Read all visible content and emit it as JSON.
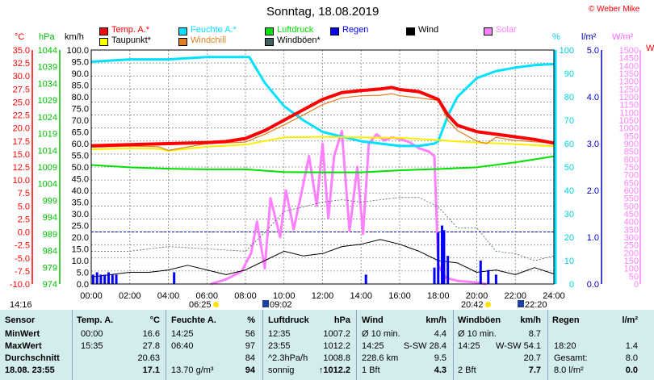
{
  "title": "Sonntag, 18.08.2019",
  "copyright": "© Weber Mike",
  "legend": [
    {
      "key": "temp",
      "label": "Temp. A.*",
      "color": "#ff0000"
    },
    {
      "key": "hum",
      "label": "Feuchte A.*",
      "color": "#00e0ff"
    },
    {
      "key": "press",
      "label": "Luftdruck",
      "color": "#00e000"
    },
    {
      "key": "rain",
      "label": "Regen",
      "color": "#0000ff"
    },
    {
      "key": "wind",
      "label": "Wind",
      "color": "#000000"
    },
    {
      "key": "solar",
      "label": "Solar",
      "color": "#ff80ff"
    },
    {
      "key": "dew",
      "label": "Taupunkt*",
      "color": "#ffff00"
    },
    {
      "key": "chill",
      "label": "Windchill",
      "color": "#e08020"
    },
    {
      "key": "gust",
      "label": "Windböen*",
      "color": "#406060"
    }
  ],
  "axis_units": {
    "temp": "°C",
    "press": "hPa",
    "wind": "km/h",
    "hum": "%",
    "rain": "l/m²",
    "solar": "W/m²",
    "cut": "W"
  },
  "sun": {
    "rise": "06:25",
    "set": "20:42"
  },
  "moon": {
    "rise": "09:02",
    "set": "22:20"
  },
  "start_time": "14:16",
  "chart_data": {
    "type": "line",
    "x_unit": "hour of day",
    "xlim": [
      0,
      24
    ],
    "x_ticks": [
      "00:00",
      "02:00",
      "04:00",
      "06:00",
      "08:00",
      "10:00",
      "12:00",
      "14:00",
      "16:00",
      "18:00",
      "20:00",
      "22:00",
      "24:00"
    ],
    "axes": {
      "temp_c": {
        "ticks": [
          "35.0",
          "32.5",
          "30.0",
          "27.5",
          "25.0",
          "22.5",
          "20.0",
          "17.5",
          "15.0",
          "12.5",
          "10.0",
          "7.5",
          "5.0",
          "2.5",
          "0.0",
          "-2.5",
          "-5.0",
          "-7.5",
          "-10.0"
        ],
        "ylim": [
          -10,
          35
        ],
        "color": "#ff0000"
      },
      "press_hpa": {
        "ticks": [
          "1044",
          "1039",
          "1034",
          "1029",
          "1024",
          "1019",
          "1014",
          "1009",
          "1004",
          "999",
          "994",
          "989",
          "984",
          "979",
          "974"
        ],
        "color": "#00c000"
      },
      "wind_kmh": {
        "ticks": [
          "100.0",
          "95.0",
          "90.0",
          "85.0",
          "80.0",
          "75.0",
          "70.0",
          "65.0",
          "60.0",
          "55.0",
          "50.0",
          "45.0",
          "40.0",
          "35.0",
          "30.0",
          "25.0",
          "20.0",
          "15.0",
          "10.0",
          "5.0",
          "0.0"
        ],
        "ylim": [
          0,
          100
        ],
        "color": "#000000"
      },
      "hum_pct": {
        "ticks": [
          "100",
          "90",
          "80",
          "70",
          "60",
          "50",
          "40",
          "30",
          "20",
          "10",
          "0"
        ],
        "ylim": [
          0,
          100
        ],
        "color": "#00d0e0"
      },
      "rain_lm2": {
        "ticks": [
          "5.0",
          "4.0",
          "3.0",
          "2.0",
          "1.0",
          "0.0"
        ],
        "ylim": [
          0,
          5
        ],
        "color": "#0000c0"
      },
      "solar_wm2": {
        "ticks": [
          "1500",
          "1450",
          "1400",
          "1350",
          "1300",
          "1250",
          "1200",
          "1150",
          "1100",
          "1050",
          "1000",
          "950",
          "900",
          "850",
          "800",
          "750",
          "700",
          "650",
          "600",
          "550",
          "500",
          "450",
          "400",
          "350",
          "300",
          "250",
          "200",
          "150",
          "100",
          "50",
          "0"
        ],
        "ylim": [
          0,
          1500
        ],
        "color": "#ff80ff"
      }
    },
    "series": [
      {
        "name": "Temp. A.*",
        "axis": "temp_c",
        "x": [
          0,
          2,
          4,
          6,
          7,
          8,
          9,
          10,
          11,
          12,
          13,
          14,
          15,
          15.6,
          16,
          17,
          18,
          18.5,
          19,
          20,
          21,
          22,
          23,
          24
        ],
        "y": [
          16.6,
          16.8,
          17.0,
          17.2,
          17.4,
          18.0,
          19.5,
          21.5,
          23.5,
          25.5,
          26.8,
          27.2,
          27.5,
          27.8,
          27.4,
          27.0,
          25.5,
          22.5,
          20.5,
          19.3,
          18.8,
          18.3,
          17.8,
          17.1
        ]
      },
      {
        "name": "Taupunkt*",
        "axis": "temp_c",
        "x": [
          0,
          2,
          3.5,
          4,
          6,
          8,
          9,
          10,
          12,
          14,
          16,
          17,
          18,
          19,
          20,
          22,
          24
        ],
        "y": [
          15.9,
          16.1,
          16.0,
          15.6,
          16.4,
          16.8,
          17.5,
          18.2,
          18.3,
          18.2,
          18.1,
          17.9,
          17.7,
          17.4,
          17.2,
          16.9,
          16.5
        ]
      },
      {
        "name": "Windchill",
        "axis": "temp_c",
        "x": [
          0,
          2,
          3.5,
          4,
          6,
          8,
          9,
          10,
          11,
          12,
          13,
          14,
          15,
          15.6,
          16,
          17,
          18,
          18.5,
          19,
          20,
          20.5,
          21,
          22,
          24
        ],
        "y": [
          16.3,
          16.5,
          16.4,
          15.7,
          17.0,
          17.3,
          18.8,
          20.6,
          22.5,
          24.5,
          25.8,
          26.2,
          26.3,
          26.6,
          26.2,
          25.8,
          25.3,
          21.5,
          19.5,
          17.5,
          17.0,
          18.2,
          17.6,
          17.1
        ]
      },
      {
        "name": "Feuchte A.*",
        "axis": "hum_pct",
        "x": [
          0,
          2,
          4,
          6,
          7,
          8,
          8.2,
          9,
          10,
          11,
          12,
          13,
          14,
          15,
          16,
          17,
          17.8,
          18,
          18.5,
          19,
          20,
          21,
          22,
          23,
          24
        ],
        "y": [
          95,
          96,
          96,
          97,
          97,
          97,
          97,
          86,
          76,
          70,
          65,
          63,
          61,
          60,
          59,
          59,
          60,
          61,
          72,
          80,
          88,
          91,
          92.5,
          93.5,
          94
        ]
      },
      {
        "name": "Luftdruck",
        "axis": "press_hpa",
        "x": [
          0,
          2,
          4,
          6,
          8,
          10,
          12,
          14,
          16,
          18,
          20,
          22,
          24
        ],
        "y": [
          1009.6,
          1008.9,
          1008.5,
          1008.3,
          1008.3,
          1007.5,
          1007.4,
          1007.4,
          1008.0,
          1008.4,
          1008.9,
          1010.4,
          1012.2
        ]
      },
      {
        "name": "Wind",
        "axis": "wind_kmh",
        "x": [
          0,
          1,
          2,
          3,
          4,
          5,
          6,
          7,
          8,
          9,
          10,
          11,
          12,
          13,
          14,
          15,
          16,
          17,
          18,
          19,
          20,
          21,
          22,
          23,
          24
        ],
        "y": [
          3,
          4,
          5,
          5,
          6,
          8,
          6,
          4,
          6,
          10,
          14,
          12,
          13,
          16,
          17,
          19,
          17,
          14,
          10,
          9,
          5,
          6,
          4,
          7,
          4.3
        ]
      },
      {
        "name": "Windböen*",
        "axis": "wind_kmh",
        "x": [
          0,
          2,
          4,
          6,
          8,
          9,
          10,
          11,
          12,
          13,
          14,
          15,
          16,
          17,
          18,
          19,
          20,
          21,
          22,
          23,
          24
        ],
        "y": [
          14,
          14,
          16,
          15,
          14,
          22,
          31,
          33,
          35,
          36,
          35,
          36,
          37,
          37,
          33,
          24,
          24,
          14,
          13,
          10,
          12
        ]
      },
      {
        "name": "Regen",
        "axis": "rain_lm2",
        "x": [
          0.1,
          0.3,
          0.5,
          0.7,
          0.9,
          1.1,
          1.3,
          4.3,
          14.25,
          17.8,
          18.0,
          18.2,
          18.3,
          18.5,
          20.2,
          20.6,
          21.0
        ],
        "y": [
          0.2,
          0.25,
          0.2,
          0.2,
          0.25,
          0.2,
          0.2,
          0.25,
          0.2,
          0.35,
          1.1,
          1.25,
          1.15,
          0.6,
          0.5,
          0.3,
          0.2
        ]
      },
      {
        "name": "Solar",
        "axis": "solar_wm2",
        "x": [
          6.2,
          7,
          7.8,
          8.3,
          8.6,
          9,
          9.3,
          9.8,
          10.1,
          10.5,
          10.9,
          11.3,
          11.7,
          12.0,
          12.3,
          12.6,
          13.0,
          13.4,
          13.8,
          14.1,
          14.4,
          14.8,
          15.2,
          15.6,
          16,
          16.5,
          17,
          17.5,
          17.8,
          18.0,
          18.4,
          19,
          20,
          20.5
        ],
        "y": [
          0,
          30,
          80,
          200,
          400,
          100,
          550,
          300,
          600,
          350,
          580,
          820,
          500,
          900,
          420,
          820,
          980,
          340,
          750,
          320,
          900,
          960,
          920,
          940,
          930,
          910,
          870,
          850,
          820,
          120,
          40,
          20,
          10,
          0
        ]
      }
    ]
  },
  "table": {
    "header": [
      "Sensor",
      "Temp. A.",
      "°C",
      "Feuchte A.",
      "%",
      "Luftdruck",
      "hPa",
      "Wind",
      "km/h",
      "Windböen",
      "km/h",
      "Regen",
      "l/m²"
    ],
    "rows": [
      {
        "label": "MinWert",
        "temp_t": "00:00",
        "temp_v": "16.6",
        "hum_t": "14:25",
        "hum_v": "56",
        "press_t": "12:35",
        "press_v": "1007.2",
        "wind_t": "Ø 10 min.",
        "wind_v": "4.4",
        "gust_t": "Ø 10 min.",
        "gust_v": "8.7",
        "rain_t": "",
        "rain_v": ""
      },
      {
        "label": "MaxWert",
        "temp_t": "15:35",
        "temp_v": "27.8",
        "hum_t": "06:40",
        "hum_v": "97",
        "press_t": "23:55",
        "press_v": "1012.2",
        "wind_t": "14:25",
        "wind_m": "S-SW 28.4",
        "wind_v": "",
        "gust_t": "14:25",
        "gust_m": "W-SW 54.1",
        "gust_v": "",
        "rain_t": "18:20",
        "rain_v": "1.4"
      },
      {
        "label": "Durchschnitt",
        "temp_t": "",
        "temp_v": "20.63",
        "hum_t": "",
        "hum_v": "84",
        "press_t": "^2.3hPa/h",
        "press_v": "1008.8",
        "wind_t": "228.6 km",
        "wind_v": "9.5",
        "gust_t": "",
        "gust_v": "20.7",
        "rain_t": "Gesamt:",
        "rain_v": "8.0"
      },
      {
        "label": "18.08. 23:55",
        "temp_t": "",
        "temp_v": "17.1",
        "hum_t": "13.70 g/m³",
        "hum_v": "94",
        "press_t": "sonnig",
        "press_v": "↑1012.2",
        "wind_t": "1 Bft",
        "wind_v": "4.3",
        "gust_t": "2 Bft",
        "gust_v": "7.7",
        "rain_t": "8.0 l/m²",
        "rain_v": "0.0"
      }
    ]
  }
}
